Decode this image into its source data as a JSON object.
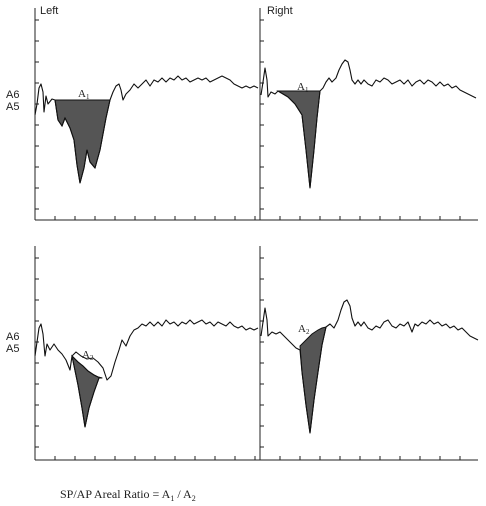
{
  "panels": {
    "top_left": {
      "title": "Left",
      "area_label": "A",
      "area_sub": "1"
    },
    "top_right": {
      "title": "Right",
      "area_label": "A",
      "area_sub": "1"
    },
    "bottom_left": {
      "area_label": "A",
      "area_sub": "2"
    },
    "bottom_right": {
      "area_label": "A",
      "area_sub": "2"
    }
  },
  "ylabels": {
    "a6": "A6",
    "a5": "A5"
  },
  "caption": {
    "prefix": "SP/AP Areal Ratio = A",
    "sub1": "1",
    "mid": " / A",
    "sub2": "2"
  },
  "colors": {
    "ink": "#111111",
    "shade": "#555555"
  }
}
